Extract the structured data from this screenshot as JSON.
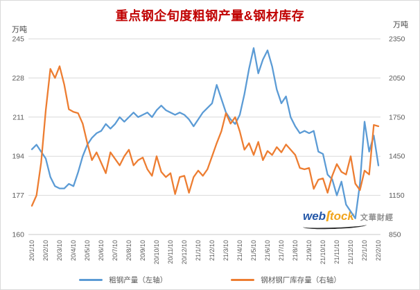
{
  "page": {
    "background": "#ffffff",
    "border_color": "#d9d9d9"
  },
  "title": {
    "text": "重点钢企旬度粗钢产量&钢材库存",
    "color": "#c00000"
  },
  "axes": {
    "left_unit": "万吨",
    "right_unit": "万吨"
  },
  "legend": [
    {
      "label": "粗钢产量（左轴）",
      "color": "#5b9bd5"
    },
    {
      "label": "钢材钢厂库存量（右轴）",
      "color": "#ed7d31"
    }
  ],
  "watermark": {
    "web": "web",
    "swoosh": "ſ",
    "stock": "tock",
    "brand": "文華財經"
  },
  "chart_data": {
    "type": "line",
    "title": "重点钢企旬度粗钢产量&钢材库存",
    "grid": true,
    "grid_color": "#d9d9d9",
    "axis_line_color": "#c9c9c9",
    "tick_color": "#595959",
    "legend_position": "bottom",
    "points_per_month": 3,
    "x_tick_labels": [
      "20/1/10",
      "20/2/10",
      "20/3/10",
      "20/4/10",
      "20/5/10",
      "20/6/10",
      "20/7/10",
      "20/8/10",
      "20/9/10",
      "20/10/10",
      "20/11/10",
      "20/12/10",
      "21/1/10",
      "21/2/10",
      "21/3/10",
      "21/4/10",
      "21/5/10",
      "21/6/10",
      "21/7/10",
      "21/8/10",
      "21/9/10",
      "21/10/10",
      "21/11/10",
      "21/12/10",
      "22/1/10",
      "22/2/10"
    ],
    "left_axis": {
      "label": "万吨",
      "min": 160,
      "max": 245,
      "ticks": [
        245,
        228,
        211,
        194,
        177,
        160
      ]
    },
    "right_axis": {
      "label": "万吨",
      "min": 850,
      "max": 2350,
      "ticks": [
        2350,
        2050,
        1750,
        1450,
        1150,
        850
      ]
    },
    "series": [
      {
        "name": "粗钢产量（左轴）",
        "axis": "left",
        "color": "#5b9bd5",
        "values": [
          197,
          199,
          196,
          193,
          185,
          181,
          180,
          180,
          182,
          181,
          187,
          194,
          199,
          202,
          204,
          205,
          208,
          206,
          208,
          211,
          209,
          211,
          213,
          211,
          212,
          213,
          211,
          214,
          216,
          214,
          213,
          212,
          213,
          212,
          210,
          207,
          210,
          213,
          215,
          217,
          225,
          219,
          213,
          210,
          208,
          212,
          221,
          232,
          241,
          230,
          236,
          240,
          233,
          223,
          217,
          220,
          211,
          207,
          204,
          205,
          204,
          205,
          196,
          195,
          186,
          184,
          177,
          183,
          173,
          170,
          167,
          182,
          209,
          196,
          203,
          190
        ]
      },
      {
        "name": "钢材钢厂库存量（右轴）",
        "axis": "right",
        "color": "#ed7d31",
        "values": [
          1070,
          1150,
          1400,
          1800,
          2120,
          2050,
          2140,
          2000,
          1810,
          1790,
          1780,
          1700,
          1550,
          1420,
          1480,
          1400,
          1320,
          1480,
          1430,
          1380,
          1450,
          1500,
          1380,
          1420,
          1440,
          1350,
          1300,
          1450,
          1330,
          1290,
          1320,
          1160,
          1290,
          1300,
          1170,
          1290,
          1340,
          1300,
          1350,
          1450,
          1550,
          1640,
          1780,
          1700,
          1750,
          1640,
          1500,
          1550,
          1460,
          1560,
          1420,
          1490,
          1460,
          1520,
          1480,
          1540,
          1500,
          1460,
          1360,
          1350,
          1360,
          1200,
          1270,
          1280,
          1170,
          1300,
          1390,
          1330,
          1310,
          1450,
          1240,
          1190,
          1340,
          1310,
          1690,
          1680
        ]
      }
    ]
  }
}
